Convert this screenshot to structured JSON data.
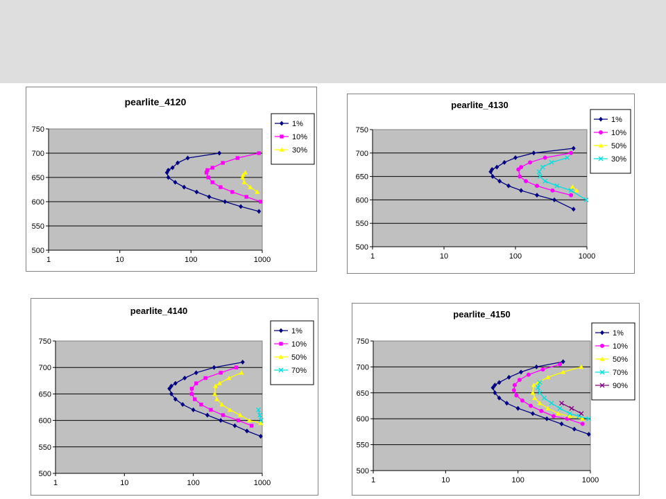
{
  "slide": {
    "header_color": "#dedede"
  },
  "chart_data": [
    {
      "type": "scatter",
      "title": "pearlite_4120",
      "xlabel": "",
      "ylabel": "",
      "xscale": "log",
      "xlim": [
        1,
        1000
      ],
      "ylim": [
        500,
        750
      ],
      "x_ticks": [
        "1",
        "10",
        "100",
        "1000"
      ],
      "y_ticks": [
        "500",
        "550",
        "600",
        "650",
        "700",
        "750"
      ],
      "grid": "horizontal",
      "plot_background": "#c0c0c0",
      "legend": "right",
      "series": [
        {
          "name": "1%",
          "color": "#000080",
          "marker": "diamond",
          "x": [
            250,
            90,
            65,
            55,
            48,
            46,
            48,
            60,
            80,
            120,
            180,
            300,
            500,
            900
          ],
          "y": [
            700,
            690,
            680,
            670,
            665,
            660,
            650,
            640,
            630,
            620,
            610,
            600,
            590,
            580
          ]
        },
        {
          "name": "10%",
          "color": "#ff00ff",
          "marker": "square",
          "x": [
            900,
            450,
            280,
            200,
            170,
            165,
            175,
            200,
            260,
            380,
            600,
            950
          ],
          "y": [
            700,
            690,
            680,
            670,
            665,
            660,
            650,
            640,
            630,
            620,
            610,
            600
          ]
        },
        {
          "name": "30%",
          "color": "#ffff00",
          "marker": "triangle",
          "x": [
            580,
            540,
            530,
            560,
            680,
            850
          ],
          "y": [
            660,
            655,
            650,
            640,
            630,
            620
          ]
        }
      ]
    },
    {
      "type": "scatter",
      "title": "pearlite_4130",
      "xlabel": "",
      "ylabel": "",
      "xscale": "log",
      "xlim": [
        1,
        1000
      ],
      "ylim": [
        500,
        750
      ],
      "x_ticks": [
        "1",
        "10",
        "100",
        "1000"
      ],
      "y_ticks": [
        "500",
        "550",
        "600",
        "650",
        "700",
        "750"
      ],
      "grid": "horizontal",
      "plot_background": "#c0c0c0",
      "legend": "right",
      "series": [
        {
          "name": "1%",
          "color": "#000080",
          "marker": "diamond",
          "x": [
            650,
            180,
            100,
            70,
            55,
            47,
            45,
            48,
            60,
            80,
            120,
            200,
            350,
            650
          ],
          "y": [
            710,
            700,
            690,
            680,
            670,
            665,
            660,
            650,
            640,
            630,
            620,
            610,
            600,
            580
          ]
        },
        {
          "name": "10%",
          "color": "#ff00ff",
          "marker": "circle",
          "x": [
            600,
            260,
            160,
            120,
            110,
            115,
            140,
            200,
            330,
            600
          ],
          "y": [
            700,
            690,
            680,
            670,
            665,
            650,
            640,
            630,
            620,
            610
          ]
        },
        {
          "name": "50%",
          "color": "#ffff00",
          "marker": "triangle",
          "x": [
            630,
            720
          ],
          "y": [
            628,
            620
          ]
        },
        {
          "name": "30%",
          "color": "#00e0e0",
          "marker": "x",
          "x": [
            530,
            320,
            240,
            215,
            220,
            260,
            380,
            600,
            980
          ],
          "y": [
            690,
            680,
            670,
            660,
            650,
            640,
            630,
            620,
            600
          ]
        }
      ]
    },
    {
      "type": "scatter",
      "title": "pearlite_4140",
      "xlabel": "",
      "ylabel": "",
      "xscale": "log",
      "xlim": [
        1,
        1000
      ],
      "ylim": [
        500,
        750
      ],
      "x_ticks": [
        "1",
        "10",
        "100",
        "1000"
      ],
      "y_ticks": [
        "500",
        "550",
        "600",
        "650",
        "700",
        "750"
      ],
      "grid": "horizontal",
      "plot_background": "#c0c0c0",
      "legend": "right",
      "series": [
        {
          "name": "1%",
          "color": "#000080",
          "marker": "diamond",
          "x": [
            520,
            200,
            110,
            75,
            55,
            48,
            45,
            48,
            55,
            70,
            100,
            160,
            250,
            400,
            600,
            950
          ],
          "y": [
            710,
            700,
            690,
            680,
            670,
            665,
            660,
            650,
            640,
            630,
            620,
            610,
            600,
            590,
            580,
            570
          ]
        },
        {
          "name": "10%",
          "color": "#ff00ff",
          "marker": "square",
          "x": [
            420,
            250,
            150,
            110,
            95,
            95,
            105,
            130,
            180,
            270,
            450,
            700
          ],
          "y": [
            700,
            690,
            680,
            670,
            660,
            650,
            640,
            630,
            620,
            610,
            600,
            590
          ]
        },
        {
          "name": "50%",
          "color": "#ffff00",
          "marker": "triangle",
          "x": [
            500,
            330,
            240,
            210,
            205,
            220,
            260,
            340,
            480,
            650,
            950
          ],
          "y": [
            690,
            680,
            670,
            665,
            650,
            640,
            630,
            620,
            610,
            600,
            595
          ]
        },
        {
          "name": "70%",
          "color": "#00e0e0",
          "marker": "x",
          "x": [
            880,
            920,
            960
          ],
          "y": [
            620,
            610,
            600
          ]
        }
      ]
    },
    {
      "type": "scatter",
      "title": "pearlite_4150",
      "xlabel": "",
      "ylabel": "",
      "xscale": "log",
      "xlim": [
        1,
        1000
      ],
      "ylim": [
        500,
        750
      ],
      "x_ticks": [
        "1",
        "10",
        "100",
        "1000"
      ],
      "y_ticks": [
        "500",
        "550",
        "600",
        "650",
        "700",
        "750"
      ],
      "grid": "horizontal",
      "plot_background": "#c0c0c0",
      "legend": "right",
      "series": [
        {
          "name": "1%",
          "color": "#000080",
          "marker": "diamond",
          "x": [
            420,
            180,
            110,
            75,
            55,
            48,
            45,
            48,
            55,
            70,
            100,
            160,
            250,
            400,
            600,
            950
          ],
          "y": [
            710,
            700,
            690,
            680,
            670,
            665,
            660,
            650,
            640,
            630,
            620,
            610,
            600,
            590,
            580,
            570
          ]
        },
        {
          "name": "10%",
          "color": "#ff00ff",
          "marker": "circle",
          "x": [
            380,
            220,
            140,
            105,
            90,
            88,
            95,
            115,
            150,
            210,
            310,
            480,
            780
          ],
          "y": [
            705,
            695,
            685,
            675,
            665,
            655,
            645,
            635,
            625,
            615,
            605,
            600,
            590
          ]
        },
        {
          "name": "50%",
          "color": "#ffff00",
          "marker": "triangle",
          "x": [
            750,
            420,
            260,
            190,
            165,
            160,
            170,
            200,
            260,
            360,
            520,
            780
          ],
          "y": [
            700,
            690,
            680,
            670,
            665,
            650,
            640,
            630,
            620,
            610,
            605,
            600
          ]
        },
        {
          "name": "70%",
          "color": "#00e0e0",
          "marker": "x",
          "x": [
            200,
            190,
            200,
            230,
            290,
            380,
            520,
            700,
            950
          ],
          "y": [
            670,
            660,
            650,
            640,
            630,
            620,
            610,
            605,
            600
          ]
        },
        {
          "name": "90%",
          "color": "#800080",
          "marker": "x",
          "x": [
            400,
            550,
            750
          ],
          "y": [
            630,
            620,
            610
          ]
        }
      ]
    }
  ]
}
